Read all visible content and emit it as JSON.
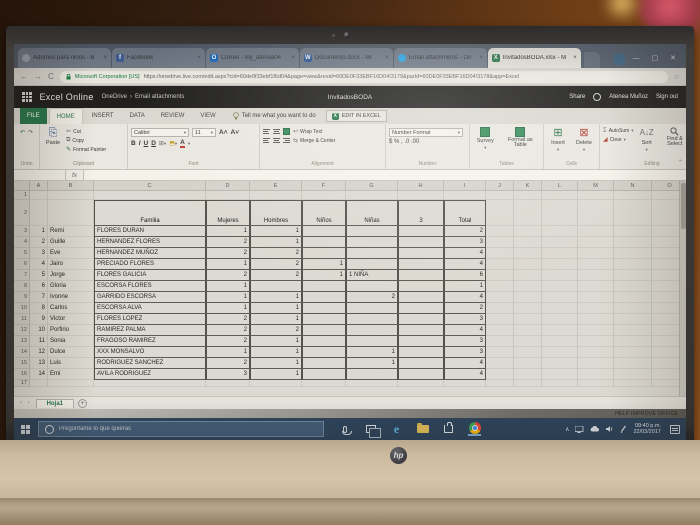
{
  "photo": {
    "device_logo": "hp"
  },
  "browser": {
    "tabs": [
      {
        "label": "Adornos para niños - B",
        "icon": "globe-icon",
        "active": false
      },
      {
        "label": "Facebook",
        "icon": "facebook-icon",
        "active": false
      },
      {
        "label": "Correo - my_atenea04",
        "icon": "outlook-icon",
        "active": false
      },
      {
        "label": "Documento.docx - Mi",
        "icon": "word-icon",
        "active": false
      },
      {
        "label": "Email attachments - On",
        "icon": "onedrive-icon",
        "active": false
      },
      {
        "label": "InvitadosBODA.xlsx - M",
        "icon": "excel-icon",
        "active": true
      }
    ],
    "close_glyph": "×",
    "window_controls": {
      "minimize": "—",
      "maximize": "▢",
      "close": "✕"
    },
    "nav": {
      "back": "←",
      "forward": "→",
      "reload": "C"
    },
    "address": {
      "security_label": "Microsoft Corporation [US]",
      "url": "https://onedrive.live.com/edit.aspx?cid=60de0f33ebf1f6d04&page=view&resid=60DE0F33EBF16D04!3179&parId=60DE0F33EBF16D04!3178&app=Excel",
      "star": "☆"
    }
  },
  "excel": {
    "app_name": "Excel Online",
    "breadcrumb_root": "OneDrive",
    "breadcrumb_sep": "›",
    "breadcrumb_folder": "Email attachments",
    "doc_title": "InvitadosBODA",
    "share_label": "Share",
    "account_name": "Atenea Muñoz",
    "sign_out_label": "Sign out",
    "tabs": {
      "file": "FILE",
      "home": "HOME",
      "insert": "INSERT",
      "data": "DATA",
      "review": "REVIEW",
      "view": "VIEW"
    },
    "tell_me": "Tell me what you want to do",
    "edit_in_excel": "EDIT IN EXCEL",
    "ribbon": {
      "undo_label": "Undo",
      "clipboard": {
        "paste": "Paste",
        "cut": "Cut",
        "copy": "Copy",
        "format_painter": "Format Painter",
        "label": "Clipboard"
      },
      "font": {
        "family": "Calibri",
        "size": "11",
        "bold": "B",
        "italic": "I",
        "underline": "U",
        "dbl": "D",
        "label": "Font"
      },
      "alignment": {
        "wrap": "Wrap Text",
        "merge": "Merge & Center",
        "label": "Alignment"
      },
      "number": {
        "format": "Number Format",
        "icons": "$ % , .0 .00",
        "label": "Number"
      },
      "tables": {
        "survey": "Survey",
        "format_as_table": "Format as Table",
        "label": "Tables"
      },
      "cells": {
        "insert": "Insert",
        "delete": "Delete",
        "label": "Cells"
      },
      "editing": {
        "autosum": "AutoSum",
        "clear": "Clear",
        "sort": "Sort",
        "find": "Find & Select",
        "label": "Editing"
      }
    },
    "formula_fx": "fx",
    "sheet_tab": "Hoja1",
    "sheet_nav": "‹ ›",
    "add_sheet": "+",
    "help_improve": "HELP IMPROVE OFFICE"
  },
  "grid": {
    "columns": [
      "A",
      "B",
      "C",
      "D",
      "E",
      "F",
      "G",
      "H",
      "I",
      "J",
      "K",
      "L",
      "M",
      "N",
      "O"
    ],
    "header_row": {
      "familia": "Familia",
      "mujeres": "Mujeres",
      "hombres": "Hombres",
      "ninos": "Niños",
      "ninas": "Niñas",
      "extra": "3",
      "total": "Total"
    },
    "rows": [
      {
        "n": "1",
        "name": "Remi",
        "familia": "FLORES DURAN",
        "mujeres": "1",
        "hombres": "1",
        "ninos": "",
        "ninas": "",
        "total": "2"
      },
      {
        "n": "2",
        "name": "Guille",
        "familia": "HERNANDEZ FLORES",
        "mujeres": "2",
        "hombres": "1",
        "ninos": "",
        "ninas": "",
        "total": "3"
      },
      {
        "n": "3",
        "name": "Eve",
        "familia": "HERNANDEZ MUÑOZ",
        "mujeres": "2",
        "hombres": "2",
        "ninos": "",
        "ninas": "",
        "total": "4"
      },
      {
        "n": "4",
        "name": "Jairo",
        "familia": "PRECIADO FLORES",
        "mujeres": "1",
        "hombres": "2",
        "ninos": "1",
        "ninas": "",
        "total": "4"
      },
      {
        "n": "5",
        "name": "Jorge",
        "familia": "FLORES GALICIA",
        "mujeres": "2",
        "hombres": "2",
        "ninos": "1",
        "ninas": "1 NIÑA",
        "total": "6"
      },
      {
        "n": "6",
        "name": "Gloria",
        "familia": "ESCORSA FLORES",
        "mujeres": "1",
        "hombres": "",
        "ninos": "",
        "ninas": "",
        "total": "1"
      },
      {
        "n": "7",
        "name": "Ivonne",
        "familia": "GARRIDO ESCORSA",
        "mujeres": "1",
        "hombres": "1",
        "ninos": "",
        "ninas": "2",
        "total": "4"
      },
      {
        "n": "8",
        "name": "Carlos",
        "familia": "ESCORSA ALVA",
        "mujeres": "1",
        "hombres": "1",
        "ninos": "",
        "ninas": "",
        "total": "2"
      },
      {
        "n": "9",
        "name": "Victor",
        "familia": "FLORES LOPEZ",
        "mujeres": "2",
        "hombres": "1",
        "ninos": "",
        "ninas": "",
        "total": "3"
      },
      {
        "n": "10",
        "name": "Porfirio",
        "familia": "RAMIREZ PALMA",
        "mujeres": "2",
        "hombres": "2",
        "ninos": "",
        "ninas": "",
        "total": "4"
      },
      {
        "n": "11",
        "name": "Sonia",
        "familia": "FRAGOSO RAMIREZ",
        "mujeres": "2",
        "hombres": "1",
        "ninos": "",
        "ninas": "",
        "total": "3"
      },
      {
        "n": "12",
        "name": "Dulce",
        "familia": "XXX MONSALVO",
        "mujeres": "1",
        "hombres": "1",
        "ninos": "",
        "ninas": "1",
        "total": "3"
      },
      {
        "n": "13",
        "name": "Luis",
        "familia": "RODRIGUEZ SANCHEZ",
        "mujeres": "2",
        "hombres": "1",
        "ninos": "",
        "ninas": "1",
        "total": "4"
      },
      {
        "n": "14",
        "name": "Emi",
        "familia": "AVILA RODRIGUEZ",
        "mujeres": "3",
        "hombres": "1",
        "ninos": "",
        "ninas": "",
        "total": "4"
      }
    ]
  },
  "taskbar": {
    "search_placeholder": "Pregúntame lo que quieras",
    "time": "09:40 p.m.",
    "date": "22/03/2017"
  }
}
